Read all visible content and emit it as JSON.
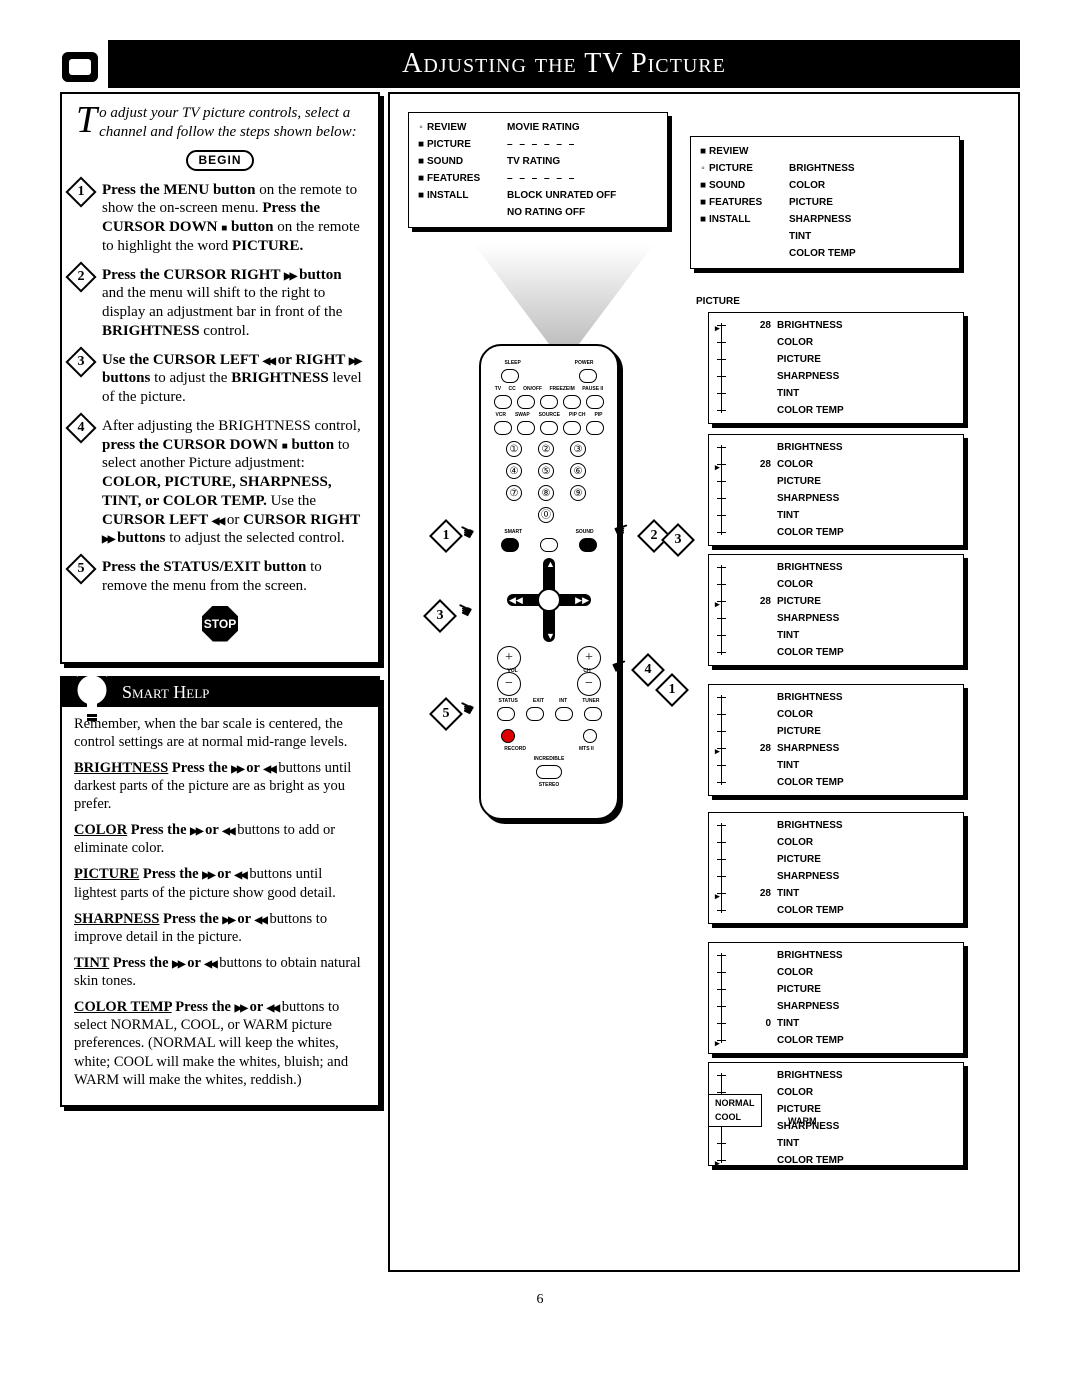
{
  "title": "Adjusting the TV Picture",
  "page_number": "6",
  "intro_text": "o adjust your TV picture controls, select a channel and follow the steps shown below:",
  "begin_label": "BEGIN",
  "stop_label": "STOP",
  "steps": [
    {
      "n": "1",
      "html": "<b>Press the MENU button</b> on the remote to show the on-screen menu. <b>Press the CURSOR DOWN <span class='blksq'></span> button</b> on the remote to highlight the word <b>PICTURE.</b>"
    },
    {
      "n": "2",
      "html": "<b>Press the CURSOR RIGHT <span class='arrow-rr'></span> button</b> and the menu will shift to the right to display an adjustment bar in front of the <b>BRIGHTNESS</b> control."
    },
    {
      "n": "3",
      "html": "<b>Use the CURSOR LEFT <span class='arrow-ll'></span> or RIGHT <span class='arrow-rr'></span> buttons</b> to adjust the <b>BRIGHTNESS</b> level of the picture."
    },
    {
      "n": "4",
      "html": "After adjusting the BRIGHTNESS control, <b>press the CURSOR DOWN <span class='blksq'></span> button</b> to select another Picture adjustment: <b>COLOR, PICTURE, SHARPNESS, TINT, or COLOR TEMP.</b> Use the <b>CURSOR LEFT <span class='arrow-ll'></span></b> or <b>CURSOR RIGHT <span class='arrow-rr'></span> buttons</b> to adjust the selected control."
    },
    {
      "n": "5",
      "html": "<b>Press the STATUS/EXIT button</b> to remove the menu from the screen."
    }
  ],
  "smart_help_title": "Smart Help",
  "smart_help_intro": "Remember, when the bar scale is centered, the control settings are at normal mid-range levels.",
  "help_items": [
    {
      "name": "BRIGHTNESS",
      "text": "Press the <span class='arrow-rr'></span> or <span class='arrow-ll'></span> buttons until darkest parts of the picture are as bright as you prefer."
    },
    {
      "name": "COLOR",
      "text": "Press the <span class='arrow-rr'></span> or <span class='arrow-ll'></span> buttons to add or eliminate color."
    },
    {
      "name": "PICTURE",
      "text": "Press the <span class='arrow-rr'></span> or <span class='arrow-ll'></span> buttons until lightest parts of the picture show good detail."
    },
    {
      "name": "SHARPNESS",
      "text": "Press the <span class='arrow-rr'></span> or <span class='arrow-ll'></span> buttons to improve detail in the picture."
    },
    {
      "name": "TINT",
      "text": "Press the <span class='arrow-rr'></span> or <span class='arrow-ll'></span> buttons to obtain natural skin tones."
    },
    {
      "name": "COLOR TEMP",
      "text": "Press the <span class='arrow-rr'></span> or <span class='arrow-ll'></span> buttons to select NORMAL, COOL, or WARM picture preferences. (NORMAL will keep the whites, white; COOL will make the whites, bluish; and WARM will make the whites, reddish.)"
    }
  ],
  "menu_panel_1": {
    "rows": [
      {
        "sel": "◦",
        "label": "REVIEW",
        "val": "MOVIE RATING"
      },
      {
        "sel": "■",
        "label": "PICTURE",
        "val": "– – – – – –",
        "dash": true
      },
      {
        "sel": "■",
        "label": "SOUND",
        "val": "TV RATING"
      },
      {
        "sel": "■",
        "label": "FEATURES",
        "val": "– – – – – –",
        "dash": true
      },
      {
        "sel": "■",
        "label": "INSTALL",
        "val": "BLOCK UNRATED OFF"
      },
      {
        "sel": "",
        "label": "",
        "val": "NO RATING        OFF"
      }
    ]
  },
  "menu_panel_2": {
    "rows": [
      {
        "sel": "■",
        "label": "REVIEW",
        "val": ""
      },
      {
        "sel": "◦",
        "label": "PICTURE",
        "val": "BRIGHTNESS"
      },
      {
        "sel": "■",
        "label": "SOUND",
        "val": "COLOR"
      },
      {
        "sel": "■",
        "label": "FEATURES",
        "val": "PICTURE"
      },
      {
        "sel": "■",
        "label": "INSTALL",
        "val": "SHARPNESS"
      },
      {
        "sel": "",
        "label": "",
        "val": "TINT"
      },
      {
        "sel": "",
        "label": "",
        "val": "COLOR TEMP"
      }
    ]
  },
  "picture_label": "PICTURE",
  "adj_items": [
    "BRIGHTNESS",
    "COLOR",
    "PICTURE",
    "SHARPNESS",
    "TINT",
    "COLOR TEMP"
  ],
  "adj_value_28": "28",
  "adj_value_0": "0",
  "normal_label": "NORMAL",
  "cool_label": "COOL",
  "warm_label": "WARM",
  "remote_top_labels": [
    "SLEEP",
    "",
    "POWER"
  ],
  "remote_row2": [
    "TV",
    "CC",
    "ON/OFF",
    "FREEZEIM",
    "PAUSE II"
  ],
  "remote_row3": [
    "VCR",
    "SWAP",
    "SOURCE",
    "PIP CH",
    "PIP"
  ],
  "remote_bottom_labels": [
    "SMART",
    "",
    "SOUND"
  ],
  "vol_label": "VOL",
  "ch_label": "CH",
  "status_label": "STATUS",
  "exit_label": "EXIT",
  "int_label": "INT",
  "tuner_label": "TUNER",
  "record_label": "RECORD",
  "mts_label": "MTS II",
  "incredible_label": "INCREDIBLE",
  "stereo_label": "STEREO",
  "colors": {
    "black": "#000000",
    "white": "#ffffff"
  }
}
